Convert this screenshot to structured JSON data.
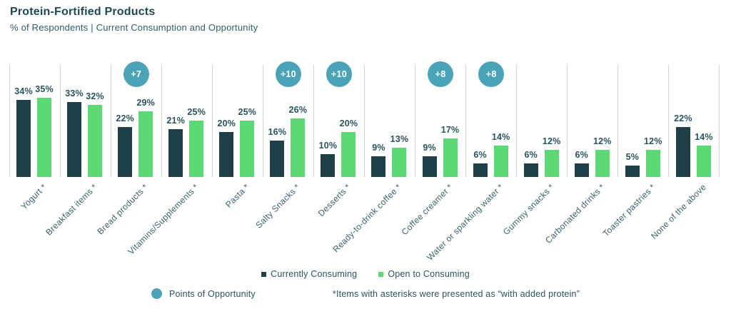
{
  "header": {
    "title": "Protein-Fortified Products",
    "subtitle": "% of Respondents | Current Consumption and Opportunity"
  },
  "chart_data": {
    "type": "bar",
    "categories": [
      "Yogurt *",
      "Breakfast items *",
      "Bread products *",
      "Vitamins/Supplements *",
      "Pasta *",
      "Salty Snacks *",
      "Desserts *",
      "Ready-to-drink coffee *",
      "Coffee creamer *",
      "Water or sparkling water *",
      "Gummy snacks *",
      "Carbonated drinks *",
      "Toaster pastries *",
      "None of the above"
    ],
    "series": [
      {
        "name": "Currently Consuming",
        "color": "#1F3F49",
        "values": [
          34,
          33,
          22,
          21,
          20,
          16,
          10,
          9,
          9,
          6,
          6,
          6,
          5,
          22
        ]
      },
      {
        "name": "Open to Consuming",
        "color": "#5CD874",
        "values": [
          35,
          32,
          29,
          25,
          25,
          26,
          20,
          13,
          17,
          14,
          12,
          12,
          12,
          14
        ]
      }
    ],
    "value_suffix": "%",
    "opportunity_badges": [
      null,
      null,
      "+7",
      null,
      null,
      "+10",
      "+10",
      null,
      "+8",
      "+8",
      null,
      null,
      null,
      null
    ],
    "badge_color": "#4BA3B8",
    "divider_color": "#CBD6DA",
    "title": "Protein-Fortified Products",
    "xlabel": "",
    "ylabel": "% of Respondents",
    "ylim": [
      0,
      40
    ],
    "grid": "vertical group dividers only",
    "legend_position": "bottom-center"
  },
  "footer": {
    "opportunity_label": "Points of Opportunity",
    "opportunity_color": "#4BA3B8",
    "asterisk_note": "*Items with asterisks were presented as “with added protein”"
  }
}
